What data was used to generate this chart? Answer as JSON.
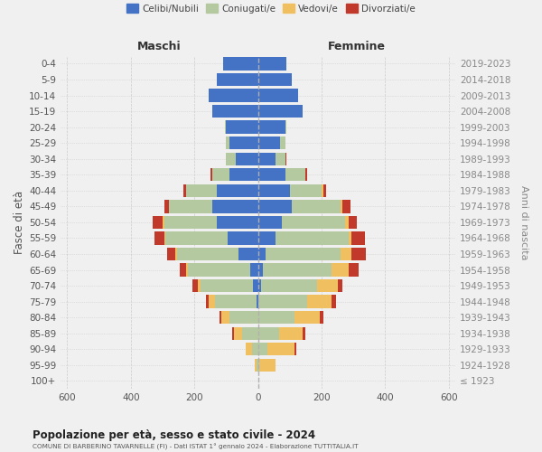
{
  "age_groups": [
    "0-4",
    "5-9",
    "10-14",
    "15-19",
    "20-24",
    "25-29",
    "30-34",
    "35-39",
    "40-44",
    "45-49",
    "50-54",
    "55-59",
    "60-64",
    "65-69",
    "70-74",
    "75-79",
    "80-84",
    "85-89",
    "90-94",
    "95-99",
    "100+"
  ],
  "birth_years": [
    "2019-2023",
    "2014-2018",
    "2009-2013",
    "2004-2008",
    "1999-2003",
    "1994-1998",
    "1989-1993",
    "1984-1988",
    "1979-1983",
    "1974-1978",
    "1969-1973",
    "1964-1968",
    "1959-1963",
    "1954-1958",
    "1949-1953",
    "1944-1948",
    "1939-1943",
    "1934-1938",
    "1929-1933",
    "1924-1928",
    "≤ 1923"
  ],
  "maschi": {
    "celibi": [
      110,
      130,
      155,
      145,
      100,
      90,
      70,
      90,
      130,
      145,
      130,
      95,
      60,
      25,
      15,
      5,
      0,
      0,
      0,
      0,
      0
    ],
    "coniugati": [
      0,
      0,
      0,
      0,
      5,
      10,
      30,
      55,
      95,
      135,
      165,
      195,
      195,
      195,
      165,
      130,
      90,
      50,
      20,
      5,
      0
    ],
    "vedovi": [
      0,
      0,
      0,
      0,
      0,
      0,
      0,
      0,
      0,
      0,
      5,
      5,
      5,
      5,
      10,
      20,
      25,
      25,
      20,
      5,
      0
    ],
    "divorziati": [
      0,
      0,
      0,
      0,
      0,
      0,
      0,
      5,
      10,
      15,
      30,
      30,
      25,
      20,
      15,
      10,
      5,
      5,
      0,
      0,
      0
    ]
  },
  "femmine": {
    "nubili": [
      90,
      105,
      125,
      140,
      85,
      70,
      55,
      85,
      100,
      105,
      75,
      55,
      25,
      15,
      10,
      0,
      0,
      0,
      0,
      0,
      0
    ],
    "coniugate": [
      0,
      0,
      0,
      0,
      5,
      15,
      30,
      65,
      100,
      155,
      200,
      230,
      235,
      215,
      175,
      155,
      115,
      65,
      30,
      5,
      0
    ],
    "vedove": [
      0,
      0,
      0,
      0,
      0,
      0,
      0,
      0,
      5,
      5,
      10,
      10,
      35,
      55,
      65,
      75,
      80,
      75,
      85,
      50,
      0
    ],
    "divorziate": [
      0,
      0,
      0,
      0,
      0,
      0,
      5,
      5,
      10,
      25,
      25,
      40,
      45,
      30,
      15,
      15,
      10,
      10,
      5,
      0,
      0
    ]
  },
  "colors": {
    "celibi": "#4472C4",
    "coniugati": "#b5c9a0",
    "vedovi": "#f0c060",
    "divorziati": "#c0392b"
  },
  "title": "Popolazione per età, sesso e stato civile - 2024",
  "subtitle": "COMUNE DI BARBERINO TAVARNELLE (FI) - Dati ISTAT 1° gennaio 2024 - Elaborazione TUTTITALIA.IT",
  "ylabel_left": "Fasce di età",
  "ylabel_right": "Anni di nascita",
  "xlabel_left": "Maschi",
  "xlabel_right": "Femmine",
  "xlim": 620,
  "bg_color": "#f0f0f0",
  "grid_color": "#cccccc"
}
